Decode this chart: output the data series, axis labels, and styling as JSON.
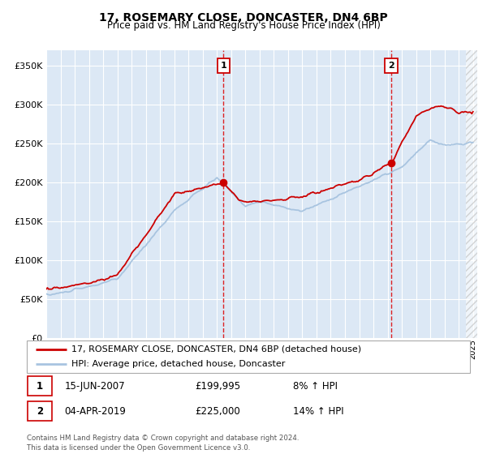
{
  "title": "17, ROSEMARY CLOSE, DONCASTER, DN4 6BP",
  "subtitle": "Price paid vs. HM Land Registry's House Price Index (HPI)",
  "x_start_year": 1995,
  "x_end_year": 2025,
  "ylim": [
    0,
    370000
  ],
  "yticks": [
    0,
    50000,
    100000,
    150000,
    200000,
    250000,
    300000,
    350000
  ],
  "hpi_color": "#a8c4e0",
  "price_color": "#cc0000",
  "transaction1_date": 2007.46,
  "transaction1_price": 199995,
  "transaction2_date": 2019.25,
  "transaction2_price": 225000,
  "legend_line1": "17, ROSEMARY CLOSE, DONCASTER, DN4 6BP (detached house)",
  "legend_line2": "HPI: Average price, detached house, Doncaster",
  "annotation1_date": "15-JUN-2007",
  "annotation1_price": "£199,995",
  "annotation1_hpi": "8% ↑ HPI",
  "annotation2_date": "04-APR-2019",
  "annotation2_price": "£225,000",
  "annotation2_hpi": "14% ↑ HPI",
  "footer": "Contains HM Land Registry data © Crown copyright and database right 2024.\nThis data is licensed under the Open Government Licence v3.0.",
  "plot_bg": "#dce8f5",
  "fig_bg": "#ffffff"
}
